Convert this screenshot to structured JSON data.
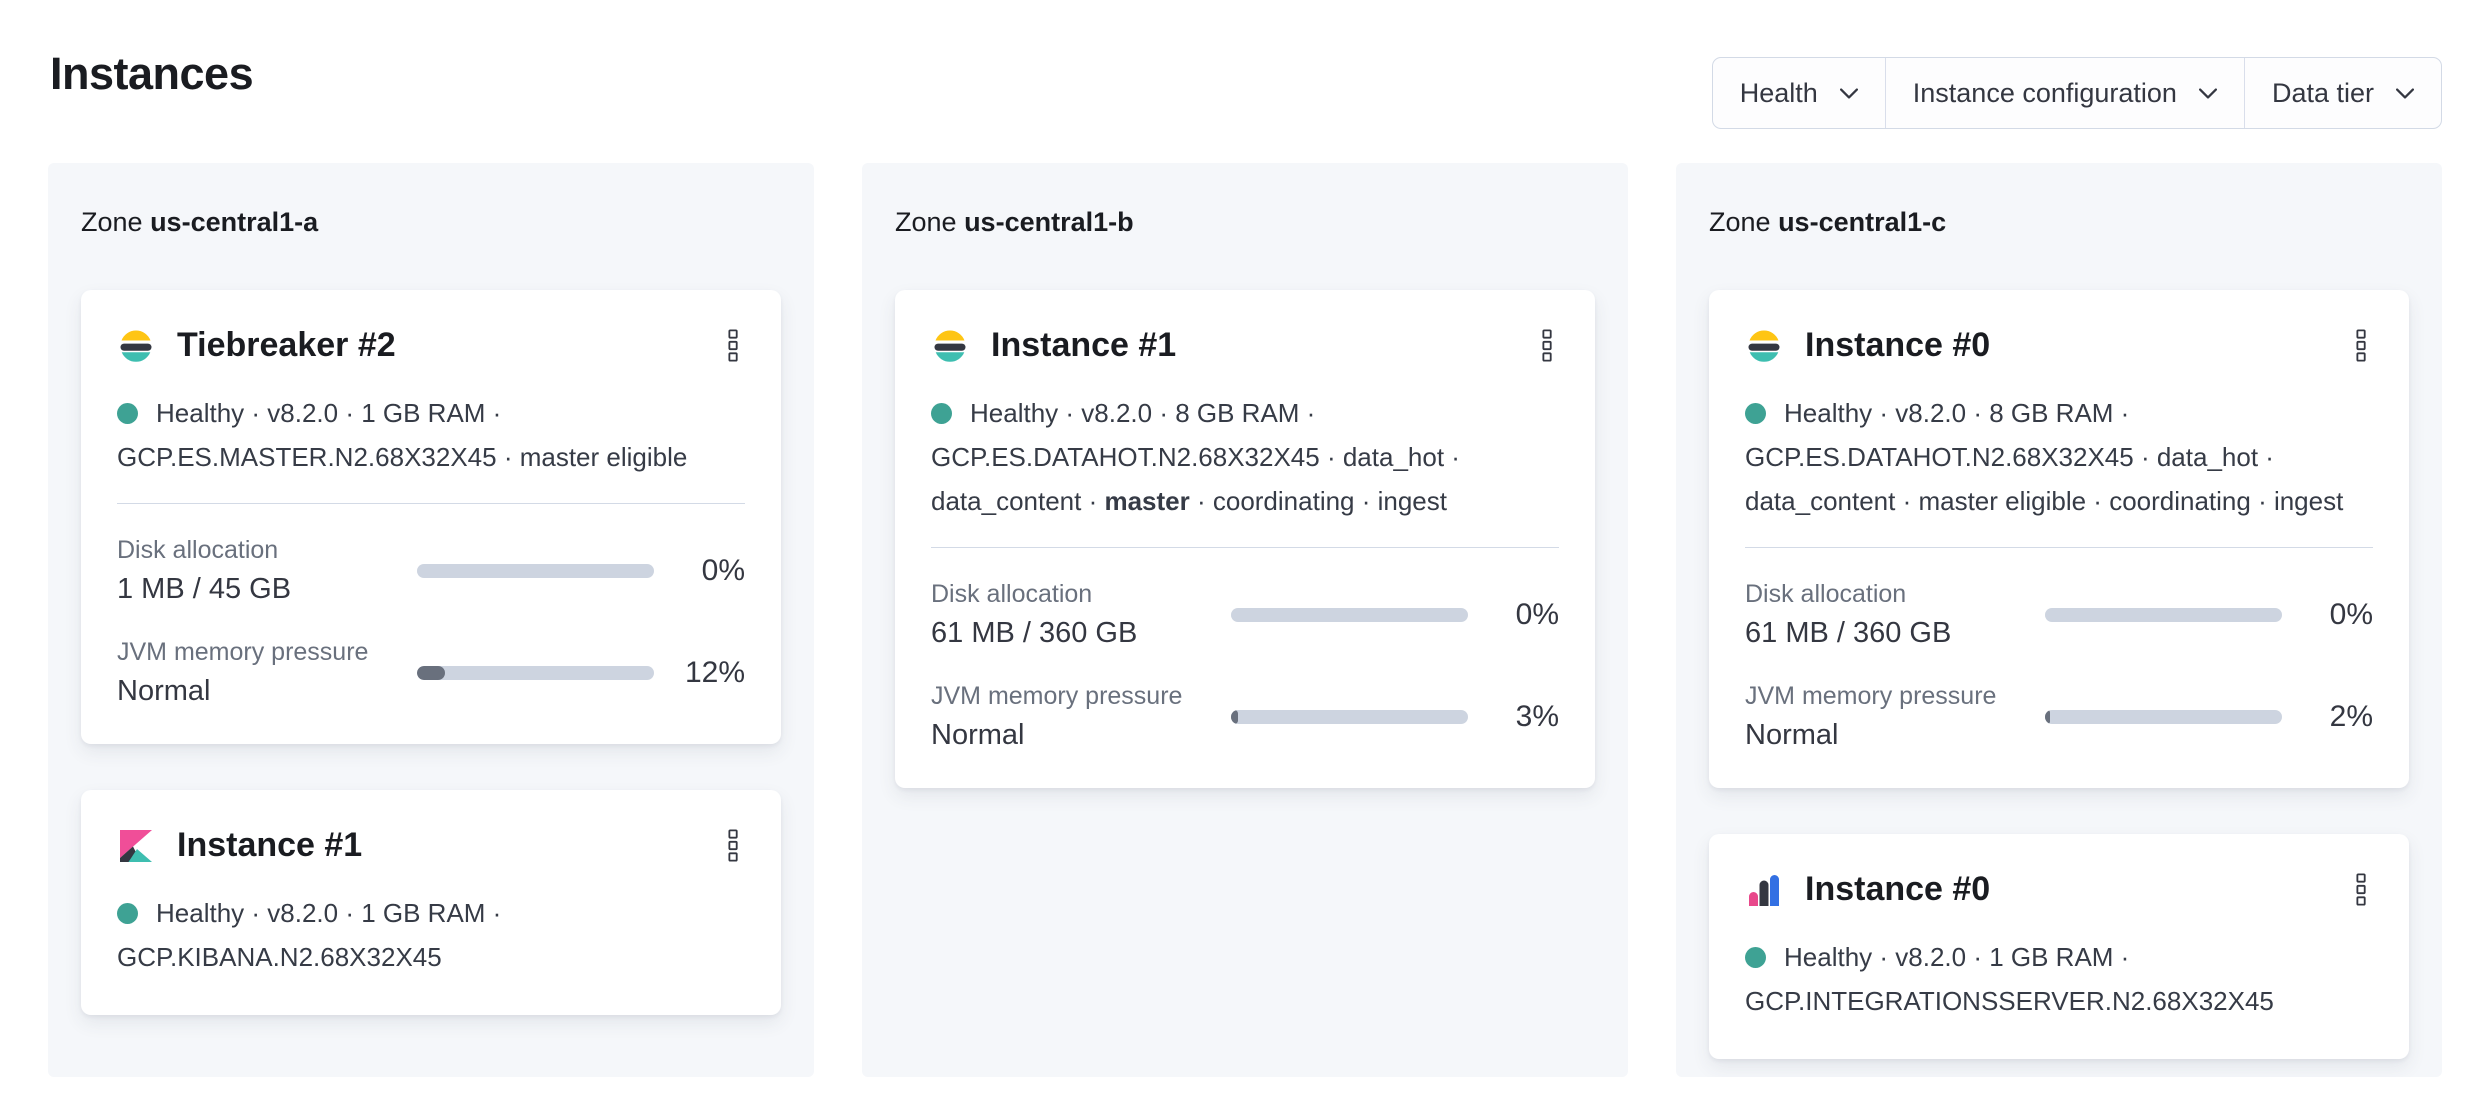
{
  "page": {
    "title": "Instances"
  },
  "filters": [
    {
      "label": "Health"
    },
    {
      "label": "Instance configuration"
    },
    {
      "label": "Data tier"
    }
  ],
  "colors": {
    "healthy_dot": "#3EA294",
    "progress_track": "#CDD4E0",
    "progress_fill": "#69707D",
    "elastic_yellow": "#FEC514",
    "elastic_dark": "#343741",
    "elastic_teal": "#3EBEB0",
    "kibana_pink": "#F04E98",
    "integrations_blue": "#3370E3",
    "integrations_pink": "#E8488B"
  },
  "zones": [
    {
      "label_prefix": "Zone",
      "name": "us-central1-a",
      "cards": [
        {
          "icon": "elasticsearch-logo",
          "title": "Tiebreaker #2",
          "status_line": "Healthy · v8.2.0 · 1 GB RAM ·",
          "config_line1": "GCP.ES.MASTER.N2.68X32X45 · master eligible",
          "metrics": [
            {
              "label": "Disk allocation",
              "value": "1 MB / 45 GB",
              "percent": "0%",
              "fill": 0
            },
            {
              "label": "JVM memory pressure",
              "value": "Normal",
              "percent": "12%",
              "fill": 12
            }
          ]
        },
        {
          "icon": "kibana-logo",
          "title": "Instance #1",
          "status_line": "Healthy · v8.2.0 · 1 GB RAM ·",
          "config_line1": "GCP.KIBANA.N2.68X32X45"
        }
      ]
    },
    {
      "label_prefix": "Zone",
      "name": "us-central1-b",
      "cards": [
        {
          "icon": "elasticsearch-logo",
          "title": "Instance #1",
          "status_line": "Healthy · v8.2.0 · 8 GB RAM ·",
          "config_line1": "GCP.ES.DATAHOT.N2.68X32X45 · data_hot ·",
          "config_line2_pre": "data_content · ",
          "config_line2_bold": "master",
          "config_line2_post": " · coordinating · ingest",
          "metrics": [
            {
              "label": "Disk allocation",
              "value": "61 MB / 360 GB",
              "percent": "0%",
              "fill": 0
            },
            {
              "label": "JVM memory pressure",
              "value": "Normal",
              "percent": "3%",
              "fill": 3
            }
          ]
        }
      ]
    },
    {
      "label_prefix": "Zone",
      "name": "us-central1-c",
      "cards": [
        {
          "icon": "elasticsearch-logo",
          "title": "Instance #0",
          "status_line": "Healthy · v8.2.0 · 8 GB RAM ·",
          "config_line1": "GCP.ES.DATAHOT.N2.68X32X45 · data_hot ·",
          "config_line2_pre": "data_content · master eligible · coordinating · ingest",
          "config_line2_bold": "",
          "config_line2_post": "",
          "metrics": [
            {
              "label": "Disk allocation",
              "value": "61 MB / 360 GB",
              "percent": "0%",
              "fill": 0
            },
            {
              "label": "JVM memory pressure",
              "value": "Normal",
              "percent": "2%",
              "fill": 2
            }
          ]
        },
        {
          "icon": "integrations-server-logo",
          "title": "Instance #0",
          "status_line": "Healthy · v8.2.0 · 1 GB RAM ·",
          "config_line1": "GCP.INTEGRATIONSSERVER.N2.68X32X45"
        }
      ]
    }
  ]
}
